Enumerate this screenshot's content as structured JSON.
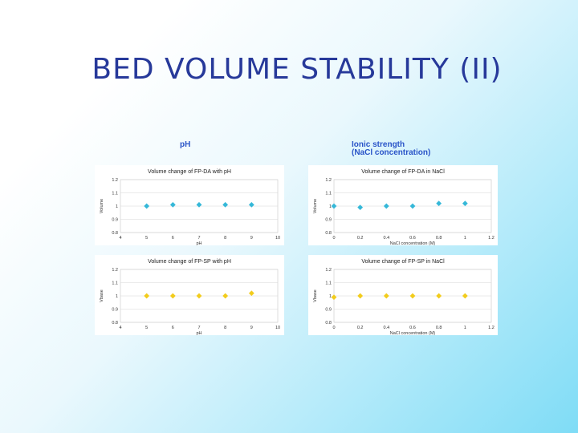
{
  "slide": {
    "title": "BED VOLUME STABILITY (II)"
  },
  "labels": {
    "ph": "pH",
    "ionic_line1": "Ionic strength",
    "ionic_line2": "(NaCl concentration)"
  },
  "colors": {
    "blue_marker": "#35b8d8",
    "yellow_marker": "#f2cc1c",
    "title_color": "#27399a",
    "label_color": "#2a54c8"
  },
  "chart_data": [
    {
      "id": "chart-fp-da-ph",
      "type": "scatter",
      "title": "Volume change of FP-DA with pH",
      "xlabel": "pH",
      "ylabel": "Volume",
      "xlim": [
        4,
        10
      ],
      "ylim": [
        0.8,
        1.2
      ],
      "xticks": [
        "4",
        "5",
        "6",
        "7",
        "8",
        "9",
        "10"
      ],
      "yticks": [
        "0.8",
        "0.9",
        "1",
        "1.1",
        "1.2"
      ],
      "grid": true,
      "marker": "diamond",
      "color": "#35b8d8",
      "x": [
        5,
        6,
        7,
        8,
        9
      ],
      "y": [
        1.0,
        1.01,
        1.01,
        1.01,
        1.01
      ]
    },
    {
      "id": "chart-fp-da-nacl",
      "type": "scatter",
      "title": "Volume change of FP-DA in NaCl",
      "xlabel": "NaCl concentration (M)",
      "ylabel": "Volume",
      "xlim": [
        0,
        1.2
      ],
      "ylim": [
        0.8,
        1.2
      ],
      "xticks": [
        "0",
        "0.2",
        "0.4",
        "0.6",
        "0.8",
        "1",
        "1.2"
      ],
      "yticks": [
        "0.8",
        "0.9",
        "1",
        "1.1",
        "1.2"
      ],
      "grid": true,
      "marker": "diamond",
      "color": "#35b8d8",
      "x": [
        0,
        0.2,
        0.4,
        0.6,
        0.8,
        1.0
      ],
      "y": [
        1.0,
        0.99,
        1.0,
        1.0,
        1.02,
        1.02
      ]
    },
    {
      "id": "chart-fp-sp-ph",
      "type": "scatter",
      "title": "Volume change of FP-SP with pH",
      "xlabel": "pH",
      "ylabel": "Vbase",
      "xlim": [
        4,
        10
      ],
      "ylim": [
        0.8,
        1.2
      ],
      "xticks": [
        "4",
        "5",
        "6",
        "7",
        "8",
        "9",
        "10"
      ],
      "yticks": [
        "0.8",
        "0.9",
        "1",
        "1.1",
        "1.2"
      ],
      "grid": true,
      "marker": "diamond",
      "color": "#f2cc1c",
      "x": [
        5,
        6,
        7,
        8,
        9
      ],
      "y": [
        1.0,
        1.0,
        1.0,
        1.0,
        1.02
      ]
    },
    {
      "id": "chart-fp-sp-nacl",
      "type": "scatter",
      "title": "Volume change of FP-SP in NaCl",
      "xlabel": "NaCl concentration (M)",
      "ylabel": "Vbase",
      "xlim": [
        0,
        1.2
      ],
      "ylim": [
        0.8,
        1.2
      ],
      "xticks": [
        "0",
        "0.2",
        "0.4",
        "0.6",
        "0.8",
        "1",
        "1.2"
      ],
      "yticks": [
        "0.8",
        "0.9",
        "1",
        "1.1",
        "1.2"
      ],
      "grid": true,
      "marker": "diamond",
      "color": "#f2cc1c",
      "x": [
        0,
        0.2,
        0.4,
        0.6,
        0.8,
        1.0
      ],
      "y": [
        0.99,
        1.0,
        1.0,
        1.0,
        1.0,
        1.0
      ]
    }
  ]
}
